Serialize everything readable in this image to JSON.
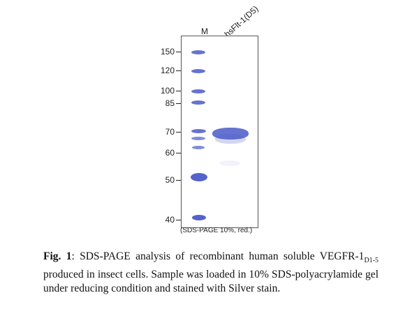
{
  "gel": {
    "lane_labels": {
      "marker": "M",
      "sample": "hsFlt-1(D5)"
    },
    "markers": [
      "150",
      "120",
      "100",
      "85",
      "70",
      "60",
      "50",
      "40"
    ],
    "note": "(SDS-PAGE 10%, red.)"
  },
  "caption": {
    "fig_label": "Fig. 1",
    "text_1": ": SDS-PAGE analysis of recombinant human soluble VEGFR-1",
    "subscript": "D1-5",
    "text_2": " produced in insect cells. Sample was loaded in 10% SDS-polyacrylamide gel under reducing condition and stained with Silver stain."
  }
}
